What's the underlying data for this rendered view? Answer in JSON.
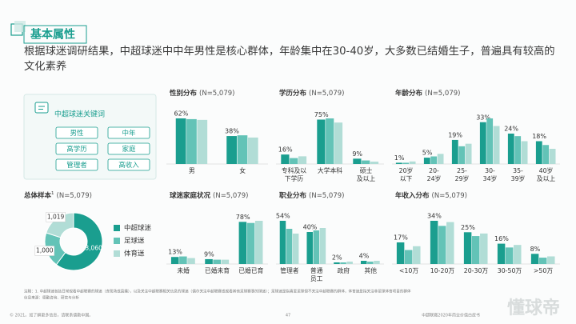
{
  "header": {
    "title": "基本属性",
    "summary": "根据球迷调研结果，中超球迷中中年男性是核心群体，年龄集中在30-40岁，大多数已结婚生子，普遍具有较高的文化素养"
  },
  "keywords": {
    "title": "中超球迷关键词",
    "items": [
      "男性",
      "中年",
      "高学历",
      "家庭",
      "管理者",
      "高收入"
    ]
  },
  "chart_data": [
    {
      "type": "pie",
      "title": "总体样本",
      "title_sup": "1",
      "note": "(N=5,079)",
      "categories": [
        "中超球迷",
        "足球迷",
        "体育迷"
      ],
      "values": [
        3060,
        1000,
        1019
      ],
      "value_labels": [
        "3,060",
        "1,000",
        "1,019"
      ],
      "colors": [
        "#1a9e8f",
        "#63c3b7",
        "#b1ddd6"
      ]
    },
    {
      "type": "bar",
      "title": "性别分布",
      "note": "(N=5,079)",
      "categories": [
        "男",
        "女"
      ],
      "series": [
        {
          "color": "#1a9e8f",
          "values": [
            62,
            38
          ],
          "value_labels": [
            "62%",
            "38%"
          ]
        },
        {
          "color": "#63c3b7",
          "values": [
            61,
            39
          ]
        },
        {
          "color": "#b1ddd6",
          "values": [
            60,
            36
          ]
        }
      ]
    },
    {
      "type": "bar",
      "title": "学历分布",
      "note": "(N=5,079)",
      "categories": [
        "专科及以\n下学历",
        "大学本科",
        "硕士\n及以上"
      ],
      "series": [
        {
          "color": "#1a9e8f",
          "values": [
            16,
            75,
            9
          ],
          "value_labels": [
            "16%",
            "75%",
            "9%"
          ]
        },
        {
          "color": "#63c3b7",
          "values": [
            10,
            77,
            6
          ]
        },
        {
          "color": "#b1ddd6",
          "values": [
            13,
            70,
            4
          ]
        }
      ]
    },
    {
      "type": "bar",
      "title": "年龄分布",
      "note": "(N=5,079)",
      "categories": [
        "20岁\n以下",
        "20-\n24岁",
        "25-\n29岁",
        "30-\n34岁",
        "35-\n39岁",
        "40岁\n及以上"
      ],
      "series": [
        {
          "color": "#1a9e8f",
          "values": [
            1,
            5,
            19,
            33,
            24,
            18
          ],
          "value_labels": [
            "1%",
            "5%",
            "19%",
            "33%",
            "24%",
            "18%"
          ]
        },
        {
          "color": "#63c3b7",
          "values": [
            1,
            6,
            14,
            36,
            22,
            15
          ]
        },
        {
          "color": "#b1ddd6",
          "values": [
            2,
            8,
            16,
            30,
            18,
            12
          ]
        }
      ]
    },
    {
      "type": "bar",
      "title": "球迷家庭状况",
      "note": "(N=5,079)",
      "categories": [
        "未婚",
        "已婚未育",
        "已婚已育"
      ],
      "series": [
        {
          "color": "#1a9e8f",
          "values": [
            13,
            9,
            78
          ],
          "value_labels": [
            "13%",
            "9%",
            "78%"
          ]
        },
        {
          "color": "#63c3b7",
          "values": [
            14,
            8,
            76
          ]
        },
        {
          "color": "#b1ddd6",
          "values": [
            11,
            8,
            80
          ]
        }
      ]
    },
    {
      "type": "bar",
      "title": "职业分布",
      "note": "(N=5,079)",
      "categories": [
        "管理者",
        "普通\n员工",
        "政府",
        "其他"
      ],
      "series": [
        {
          "color": "#1a9e8f",
          "values": [
            54,
            40,
            2,
            4
          ],
          "value_labels": [
            "54%",
            "40%",
            "2%",
            "4%"
          ]
        },
        {
          "color": "#63c3b7",
          "values": [
            44,
            42,
            2,
            3
          ]
        },
        {
          "color": "#b1ddd6",
          "values": [
            38,
            45,
            3,
            4
          ]
        }
      ]
    },
    {
      "type": "bar",
      "title": "年收入分布",
      "note": "(N=5,079)",
      "categories": [
        "<10万",
        "10-20万",
        "20-30万",
        "30-50万",
        ">50万"
      ],
      "series": [
        {
          "color": "#1a9e8f",
          "values": [
            17,
            34,
            25,
            16,
            8
          ],
          "value_labels": [
            "17%",
            "34%",
            "25%",
            "16%",
            "8%"
          ]
        },
        {
          "color": "#63c3b7",
          "values": [
            11,
            30,
            22,
            13,
            5
          ]
        },
        {
          "color": "#b1ddd6",
          "values": [
            14,
            33,
            24,
            15,
            6
          ]
        }
      ]
    }
  ],
  "footer": {
    "note": "注释：1. 中超球迷包括日常观看中超联赛的球迷（含现场或直播），以及关注中超联赛相关信息的球迷（偶尔关注中超联赛或观看其他足球赛事的球迷）；足球迷是指喜爱足球但不关注中超联赛的群体，体育迷是指关注非足球体育项目的群体",
    "source": "信息来源：德勤咨询、研究与分析",
    "copyright": "© 2021。如了解更多信息，请联系德勤中国。",
    "page": "47",
    "report": "中超联赛2020年商业价值白皮书",
    "watermark": "懂球帝"
  }
}
